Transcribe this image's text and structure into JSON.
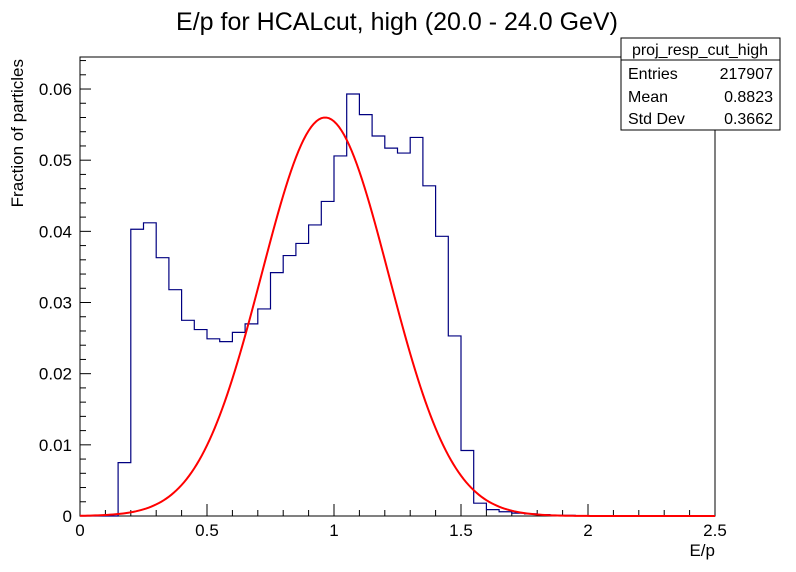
{
  "chart_data": {
    "type": "histogram",
    "title": "E/p for HCALcut, high (20.0 - 24.0 GeV)",
    "xlabel": "E/p",
    "ylabel": "Fraction of particles",
    "xlim": [
      0,
      2.5
    ],
    "ylim": [
      0,
      0.0645
    ],
    "x_ticks": [
      0,
      0.5,
      1,
      1.5,
      2,
      2.5
    ],
    "x_tick_labels": [
      "0",
      "0.5",
      "1",
      "1.5",
      "2",
      "2.5"
    ],
    "y_ticks": [
      0,
      0.01,
      0.02,
      0.03,
      0.04,
      0.05,
      0.06
    ],
    "y_tick_labels": [
      "0",
      "0.01",
      "0.02",
      "0.03",
      "0.04",
      "0.05",
      "0.06"
    ],
    "grid": false,
    "histogram": {
      "color": "#000080",
      "bin_width": 0.05,
      "bin_edges_start": 0,
      "values": [
        0,
        0,
        0,
        0.0075,
        0.0403,
        0.0412,
        0.0363,
        0.0318,
        0.0275,
        0.0262,
        0.0249,
        0.0245,
        0.0258,
        0.027,
        0.0291,
        0.0342,
        0.0366,
        0.0383,
        0.0409,
        0.0442,
        0.0506,
        0.0593,
        0.0564,
        0.0534,
        0.0517,
        0.051,
        0.0532,
        0.0464,
        0.0393,
        0.0253,
        0.0092,
        0.0018,
        0.0009,
        0.0006,
        0.0004,
        0.0003,
        0.0002,
        0.0001,
        0.0001,
        5e-05,
        0,
        0,
        0,
        0,
        0,
        0,
        0,
        0,
        0,
        0
      ]
    },
    "fit": {
      "color": "#ff0000",
      "function": "gaus",
      "amplitude": 0.056,
      "mean": 0.965,
      "sigma": 0.25,
      "x_range": [
        0,
        2.5
      ]
    },
    "stats_box": {
      "name": "proj_resp_cut_high",
      "rows": [
        {
          "label": "Entries",
          "value": "217907"
        },
        {
          "label": "Mean",
          "value": "0.8823"
        },
        {
          "label": "Std Dev",
          "value": "0.3662"
        }
      ]
    }
  }
}
